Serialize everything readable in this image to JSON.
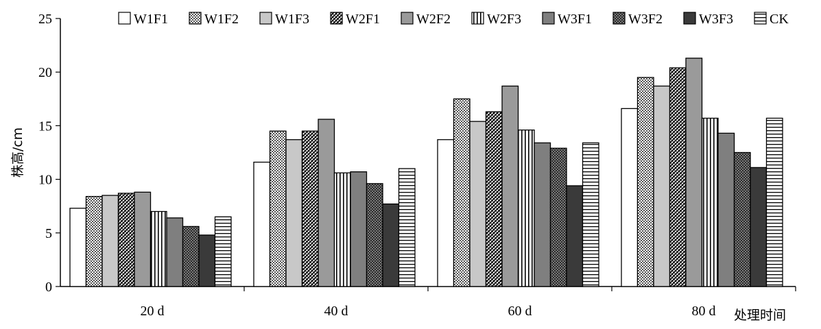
{
  "chart_data": {
    "type": "bar",
    "title": "",
    "xlabel": "处理时间",
    "ylabel": "株高/cm",
    "ylim": [
      0,
      25
    ],
    "yticks": [
      0,
      5,
      10,
      15,
      20,
      25
    ],
    "grid": false,
    "legend_position": "top",
    "categories": [
      "20 d",
      "40 d",
      "60 d",
      "80 d"
    ],
    "series": [
      {
        "name": "W1F1",
        "values": [
          7.3,
          11.6,
          13.7,
          16.6
        ],
        "fill": "#ffffff",
        "pattern": "solid"
      },
      {
        "name": "W1F2",
        "values": [
          8.4,
          14.5,
          17.5,
          19.5
        ],
        "fill": "#ffffff",
        "pattern": "dots"
      },
      {
        "name": "W1F3",
        "values": [
          8.5,
          13.7,
          15.4,
          18.7
        ],
        "fill": "#c8c8c8",
        "pattern": "solid"
      },
      {
        "name": "W2F1",
        "values": [
          8.7,
          14.5,
          16.3,
          20.4
        ],
        "fill": "#ffffff",
        "pattern": "diag-dense"
      },
      {
        "name": "W2F2",
        "values": [
          8.8,
          15.6,
          18.7,
          21.3
        ],
        "fill": "#9a9a9a",
        "pattern": "solid"
      },
      {
        "name": "W2F3",
        "values": [
          7.0,
          10.6,
          14.6,
          15.7
        ],
        "fill": "#ffffff",
        "pattern": "vlines"
      },
      {
        "name": "W3F1",
        "values": [
          6.4,
          10.7,
          13.4,
          14.3
        ],
        "fill": "#7f7f7f",
        "pattern": "solid"
      },
      {
        "name": "W3F2",
        "values": [
          5.6,
          9.6,
          12.9,
          12.5
        ],
        "fill": "#3a3a3a",
        "pattern": "checker"
      },
      {
        "name": "W3F3",
        "values": [
          4.8,
          7.7,
          9.4,
          11.1
        ],
        "fill": "#3a3a3a",
        "pattern": "solid"
      },
      {
        "name": "CK",
        "values": [
          6.5,
          11.0,
          13.4,
          15.7
        ],
        "fill": "#ffffff",
        "pattern": "hlines"
      }
    ]
  }
}
